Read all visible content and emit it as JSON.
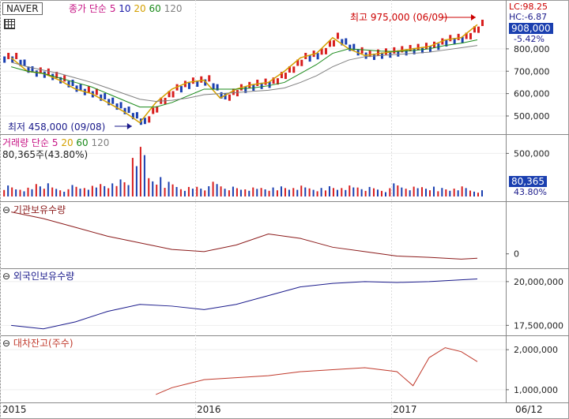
{
  "symbol": "NAVER",
  "price_header": {
    "title": "종가 단순",
    "periods": [
      "5",
      "10",
      "20",
      "60",
      "120"
    ],
    "colors": [
      "#c71585",
      "#1a1aa8",
      "#d4a000",
      "#1a8a1a",
      "#808080"
    ]
  },
  "volume_header": {
    "title": "거래량 단순",
    "periods": [
      "5",
      "20",
      "60",
      "120"
    ],
    "colors": [
      "#c71585",
      "#d4a000",
      "#1a8a1a",
      "#808080"
    ],
    "value": "80,365주(43.80%)"
  },
  "inst_header": "기관보유수량",
  "foreign_header": "외국인보유수량",
  "loan_header": "대차잔고(주수)",
  "right_labels": {
    "lc": "LC:98.25",
    "hc": "HC:-6.87",
    "price": "908,000",
    "change": "-5.42%",
    "vol": "80,365",
    "vol_pct": "43.80%"
  },
  "annotations": {
    "high": "최고 975,000 (06/09)",
    "low": "최저 458,000 (09/08)"
  },
  "x_labels": [
    "2015",
    "2016",
    "2017",
    "06/12"
  ],
  "colors": {
    "price_up": "#d81e1e",
    "price_down": "#1a3fb0",
    "volume": "#d81e1e",
    "inst": "#8b1a1a",
    "foreign": "#1a1a8b",
    "loan": "#c0392b"
  },
  "chart_data": [
    {
      "type": "line",
      "title": "NAVER 종가",
      "ylim": [
        440000,
        990000
      ],
      "yticks": [
        500000,
        600000,
        700000,
        800000
      ],
      "ytick_labels": [
        "500,000",
        "600,000",
        "700,000",
        "800,000"
      ],
      "x": [
        "2015-01",
        "2015-02",
        "2015-03",
        "2015-04",
        "2015-05",
        "2015-06",
        "2015-07",
        "2015-08",
        "2015-09",
        "2015-10",
        "2015-11",
        "2015-12",
        "2016-01",
        "2016-02",
        "2016-03",
        "2016-04",
        "2016-05",
        "2016-06",
        "2016-07",
        "2016-08",
        "2016-09",
        "2016-10",
        "2016-11",
        "2016-12",
        "2017-01",
        "2017-02",
        "2017-03",
        "2017-04",
        "2017-05",
        "2017-06"
      ],
      "close": [
        760000,
        700000,
        690000,
        660000,
        620000,
        600000,
        560000,
        520000,
        470000,
        560000,
        620000,
        650000,
        660000,
        580000,
        620000,
        640000,
        650000,
        700000,
        760000,
        780000,
        850000,
        800000,
        770000,
        780000,
        790000,
        800000,
        810000,
        840000,
        850000,
        908000
      ],
      "ma": [
        {
          "period": "60",
          "values": [
            720000,
            700000,
            690000,
            670000,
            650000,
            630000,
            600000,
            570000,
            540000,
            540000,
            560000,
            590000,
            620000,
            620000,
            620000,
            625000,
            635000,
            650000,
            690000,
            730000,
            780000,
            800000,
            795000,
            790000,
            788000,
            792000,
            800000,
            815000,
            825000,
            840000
          ]
        },
        {
          "period": "120",
          "values": [
            740000,
            720000,
            705000,
            690000,
            670000,
            650000,
            625000,
            600000,
            575000,
            565000,
            570000,
            580000,
            595000,
            600000,
            605000,
            610000,
            615000,
            625000,
            650000,
            680000,
            720000,
            750000,
            765000,
            770000,
            775000,
            780000,
            785000,
            795000,
            805000,
            815000
          ]
        }
      ],
      "annotations": {
        "high": {
          "value": 975000,
          "date": "06/09"
        },
        "low": {
          "value": 458000,
          "date": "09/08"
        }
      }
    },
    {
      "type": "bar",
      "title": "거래량",
      "yticks": [
        500000
      ],
      "ytick_labels": [
        "500,000"
      ],
      "x": [
        "2015-01",
        "2015-02",
        "2015-03",
        "2015-04",
        "2015-05",
        "2015-06",
        "2015-07",
        "2015-08",
        "2015-09",
        "2015-10",
        "2015-11",
        "2015-12",
        "2016-01",
        "2016-02",
        "2016-03",
        "2016-04",
        "2016-05",
        "2016-06",
        "2016-07",
        "2016-08",
        "2016-09",
        "2016-10",
        "2016-11",
        "2016-12",
        "2017-01",
        "2017-02",
        "2017-03",
        "2017-04",
        "2017-05",
        "2017-06"
      ],
      "values": [
        150000,
        120000,
        180000,
        110000,
        140000,
        130000,
        160000,
        220000,
        640000,
        250000,
        200000,
        130000,
        140000,
        180000,
        120000,
        110000,
        110000,
        130000,
        140000,
        110000,
        140000,
        150000,
        130000,
        100000,
        160000,
        120000,
        120000,
        110000,
        130000,
        80365
      ],
      "ylim": [
        0,
        650000
      ]
    },
    {
      "type": "line",
      "title": "기관보유수량",
      "yticks": [
        0
      ],
      "ytick_labels": [
        "0"
      ],
      "x": [
        "2015-01",
        "2015-03",
        "2015-05",
        "2015-07",
        "2015-09",
        "2015-11",
        "2016-01",
        "2016-03",
        "2016-05",
        "2016-07",
        "2016-09",
        "2016-11",
        "2017-01",
        "2017-03",
        "2017-05",
        "2017-06"
      ],
      "values": [
        0.95,
        0.8,
        0.6,
        0.4,
        0.25,
        0.1,
        0.05,
        0.2,
        0.45,
        0.35,
        0.15,
        0.05,
        -0.05,
        -0.08,
        -0.12,
        -0.1
      ]
    },
    {
      "type": "line",
      "title": "외국인보유수량",
      "ylim": [
        17200000,
        20400000
      ],
      "yticks": [
        17500000,
        20000000
      ],
      "ytick_labels": [
        "17,500,000",
        "20,000,000"
      ],
      "x": [
        "2015-01",
        "2015-03",
        "2015-05",
        "2015-07",
        "2015-09",
        "2015-11",
        "2016-01",
        "2016-03",
        "2016-05",
        "2016-07",
        "2016-09",
        "2016-11",
        "2017-01",
        "2017-03",
        "2017-05",
        "2017-06"
      ],
      "values": [
        17500000,
        17300000,
        17700000,
        18300000,
        18700000,
        18600000,
        18400000,
        18700000,
        19200000,
        19700000,
        19900000,
        20000000,
        19950000,
        20000000,
        20100000,
        20150000
      ]
    },
    {
      "type": "line",
      "title": "대차잔고(주수)",
      "ylim": [
        800000,
        2200000
      ],
      "yticks": [
        1000000,
        2000000
      ],
      "ytick_labels": [
        "1,000,000",
        "2,000,000"
      ],
      "x": [
        "2015-10",
        "2015-11",
        "2015-12",
        "2016-01",
        "2016-03",
        "2016-05",
        "2016-07",
        "2016-09",
        "2016-11",
        "2017-01",
        "2017-02",
        "2017-03",
        "2017-04",
        "2017-05",
        "2017-06"
      ],
      "values": [
        880000,
        1050000,
        1150000,
        1250000,
        1300000,
        1350000,
        1450000,
        1500000,
        1550000,
        1450000,
        1100000,
        1800000,
        2050000,
        1950000,
        1700000
      ]
    }
  ]
}
